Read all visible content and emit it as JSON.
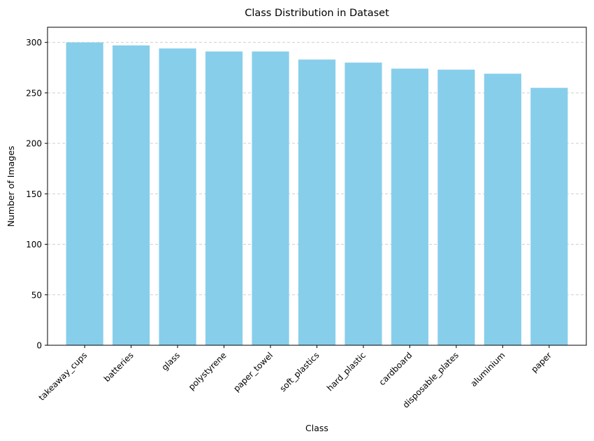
{
  "chart_data": {
    "type": "bar",
    "title": "Class Distribution in Dataset",
    "xlabel": "Class",
    "ylabel": "Number of Images",
    "categories": [
      "takeaway_cups",
      "batteries",
      "glass",
      "polystyrene",
      "paper_towel",
      "soft_plastics",
      "hard_plastic",
      "cardboard",
      "disposable_plates",
      "aluminium",
      "paper"
    ],
    "values": [
      300,
      297,
      294,
      291,
      291,
      283,
      280,
      274,
      273,
      269,
      255
    ],
    "ylim": [
      0,
      315
    ],
    "yticks": [
      0,
      50,
      100,
      150,
      200,
      250,
      300
    ],
    "grid": "y-dashed",
    "bar_color": "#87CEEB"
  }
}
